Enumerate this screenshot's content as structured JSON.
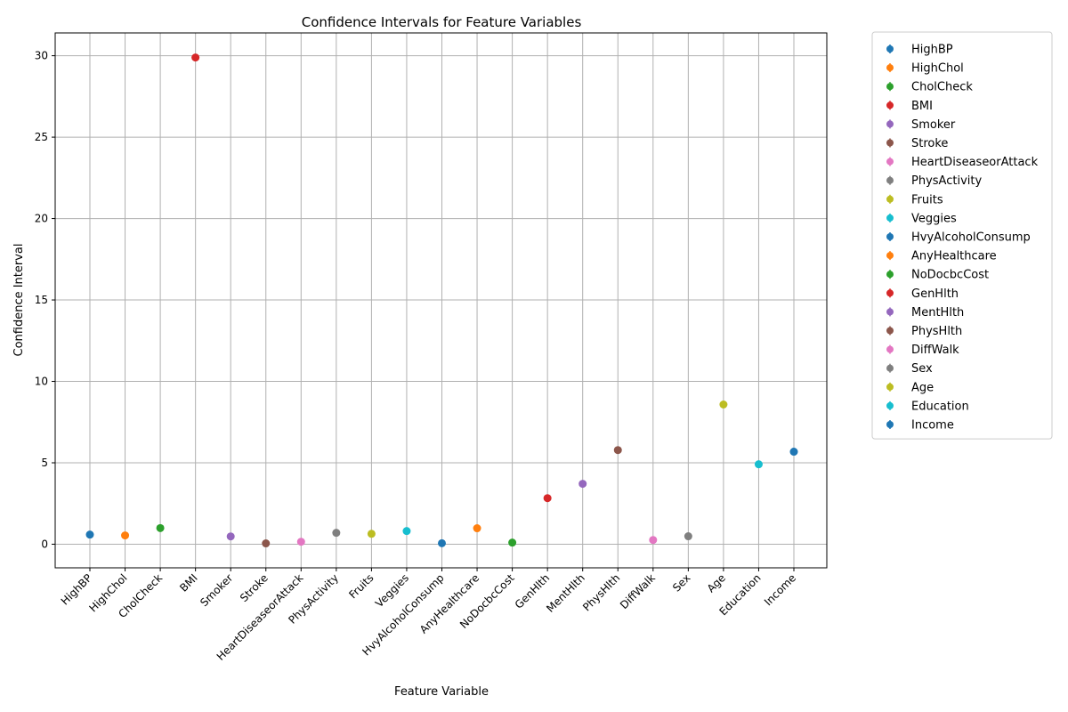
{
  "chart_data": {
    "type": "scatter",
    "title": "Confidence Intervals for Feature Variables",
    "xlabel": "Feature Variable",
    "ylabel": "Confidence Interval",
    "categories": [
      "HighBP",
      "HighChol",
      "CholCheck",
      "BMI",
      "Smoker",
      "Stroke",
      "HeartDiseaseorAttack",
      "PhysActivity",
      "Fruits",
      "Veggies",
      "HvyAlcoholConsump",
      "AnyHealthcare",
      "NoDocbcCost",
      "GenHlth",
      "MentHlth",
      "PhysHlth",
      "DiffWalk",
      "Sex",
      "Age",
      "Education",
      "Income"
    ],
    "values": [
      0.59,
      0.54,
      0.99,
      29.89,
      0.48,
      0.05,
      0.15,
      0.7,
      0.64,
      0.81,
      0.06,
      0.98,
      0.1,
      2.83,
      3.71,
      5.78,
      0.26,
      0.49,
      8.58,
      4.91,
      5.68
    ],
    "colors": [
      "#1f77b4",
      "#ff7f0e",
      "#2ca02c",
      "#d62728",
      "#9467bd",
      "#8c564b",
      "#e377c2",
      "#7f7f7f",
      "#bcbd22",
      "#17becf",
      "#1f77b4",
      "#ff7f0e",
      "#2ca02c",
      "#d62728",
      "#9467bd",
      "#8c564b",
      "#e377c2",
      "#7f7f7f",
      "#bcbd22",
      "#17becf",
      "#1f77b4"
    ],
    "ylim": [
      -1.45,
      31.4
    ],
    "yticks": [
      0,
      5,
      10,
      15,
      20,
      25,
      30
    ],
    "grid": true,
    "legend_position": "outside-right"
  }
}
